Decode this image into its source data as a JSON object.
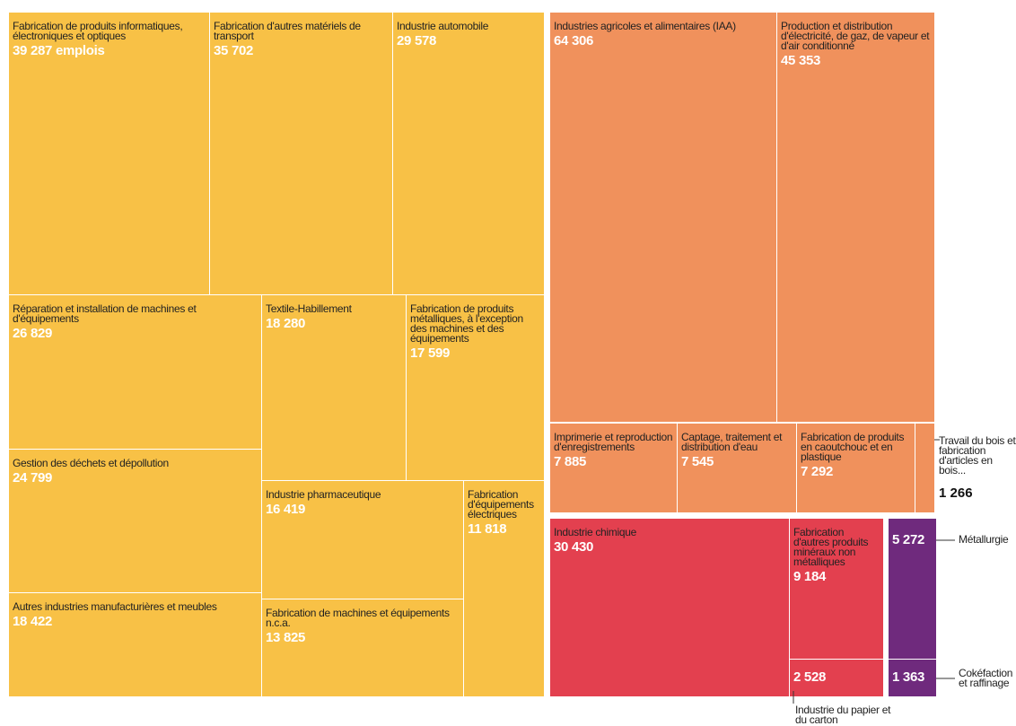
{
  "chart_data": {
    "type": "treemap",
    "categories": [
      "Fabrication de produits informatiques, électroniques et optiques",
      "Fabrication d'autres matériels de transport",
      "Industrie automobile",
      "Réparation et installation de machines et d'équipements",
      "Textile-Habillement",
      "Fabrication de produits métalliques, à l'exception des machines et des équipements",
      "Gestion des déchets et dépollution",
      "Industrie pharmaceutique",
      "Fabrication d'équipements électriques",
      "Autres industries manufacturières et meubles",
      "Fabrication de machines et équipements n.c.a.",
      "Industries agricoles et alimentaires (IAA)",
      "Production et distribution d'électricité, de gaz, de vapeur et d'air conditionné",
      "Imprimerie et reproduction d'enregistrements",
      "Captage, traitement et distribution d'eau",
      "Fabrication de produits en caoutchouc et en plastique",
      "Travail du bois et fabrication d'articles en bois...",
      "Industrie chimique",
      "Fabrication d'autres produits minéraux non métalliques",
      "Industrie du papier et du carton",
      "Métallurgie",
      "Cokéfaction et raffinage"
    ],
    "values": [
      39287,
      35702,
      29578,
      26829,
      18280,
      17599,
      24799,
      16419,
      11818,
      18422,
      13825,
      64306,
      45353,
      7885,
      7545,
      7292,
      1266,
      30430,
      9184,
      2528,
      5272,
      1363
    ],
    "value_labels": [
      "39 287 emplois",
      "35 702",
      "29 578",
      "26 829",
      "18 280",
      "17 599",
      "24 799",
      "16 419",
      "11 818",
      "18 422",
      "13 825",
      "64 306",
      "45 353",
      "7 885",
      "7 545",
      "7 292",
      "1 266",
      "30 430",
      "9 184",
      "2 528",
      "5 272",
      "1 363"
    ],
    "colors": [
      "#f8c146",
      "#f8c146",
      "#f8c146",
      "#f8c146",
      "#f8c146",
      "#f8c146",
      "#f8c146",
      "#f8c146",
      "#f8c146",
      "#f8c146",
      "#f8c146",
      "#f0915c",
      "#f0915c",
      "#f0915c",
      "#f0915c",
      "#f0915c",
      "#f0915c",
      "#e3404f",
      "#e3404f",
      "#e3404f",
      "#6f2a7d",
      "#6f2a7d"
    ]
  }
}
